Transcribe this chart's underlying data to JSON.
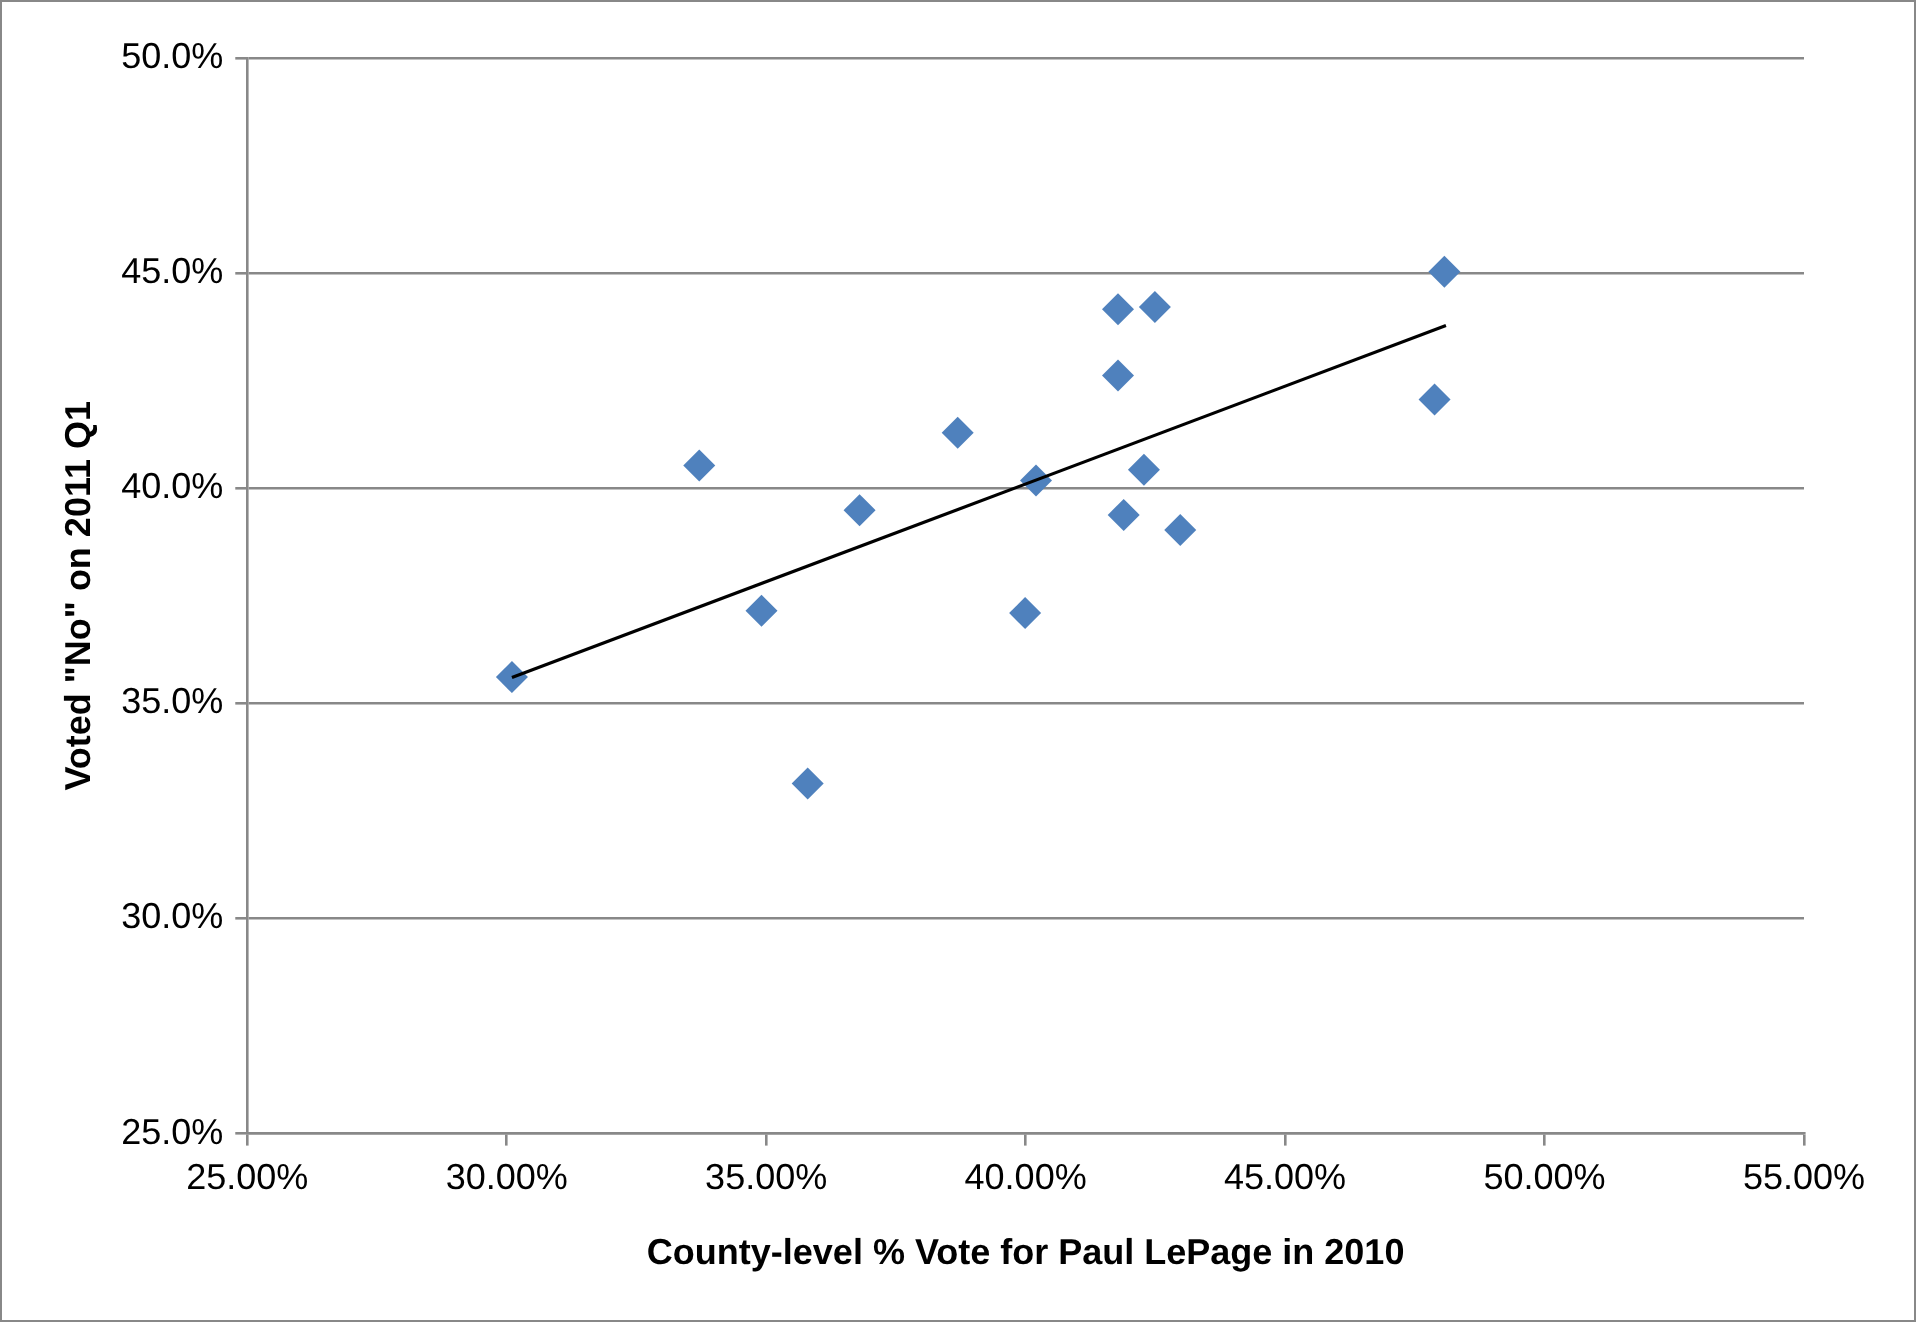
{
  "chart_data": {
    "type": "scatter",
    "xlabel": "County-level % Vote for Paul LePage in 2010",
    "ylabel": "Voted \"No\" on 2011 Q1",
    "xlim": [
      25,
      55
    ],
    "xticks": [
      {
        "value": 25,
        "label": "25.00%"
      },
      {
        "value": 30,
        "label": "30.00%"
      },
      {
        "value": 35,
        "label": "35.00%"
      },
      {
        "value": 40,
        "label": "40.00%"
      },
      {
        "value": 45,
        "label": "45.00%"
      },
      {
        "value": 50,
        "label": "50.00%"
      },
      {
        "value": 55,
        "label": "55.00%"
      }
    ],
    "ylim": [
      25,
      50
    ],
    "yticks": [
      {
        "value": 25,
        "label": "25.0%"
      },
      {
        "value": 30,
        "label": "30.0%"
      },
      {
        "value": 35,
        "label": "35.0%"
      },
      {
        "value": 40,
        "label": "40.0%"
      },
      {
        "value": 45,
        "label": "45.0%"
      },
      {
        "value": 50,
        "label": "50.0%"
      }
    ],
    "grid": "y",
    "legend": false,
    "marker": "diamond",
    "series": [
      {
        "color": "#4f81bd",
        "x": [
          30.1,
          33.71,
          34.91,
          36.8,
          35.8,
          38.69,
          40.2,
          39.99,
          41.78,
          42.49,
          41.78,
          42.28,
          41.89,
          42.98,
          48.07,
          47.88
        ],
        "values": [
          35.61,
          40.53,
          37.15,
          39.49,
          33.14,
          41.29,
          40.18,
          37.1,
          44.16,
          44.21,
          42.62,
          40.43,
          39.38,
          39.03,
          45.03,
          42.06
        ]
      },
      {
        "type": "line",
        "color": "#000000",
        "marker": "none",
        "x": [
          30.1,
          48.1
        ],
        "values": [
          35.6,
          43.78
        ]
      }
    ]
  }
}
